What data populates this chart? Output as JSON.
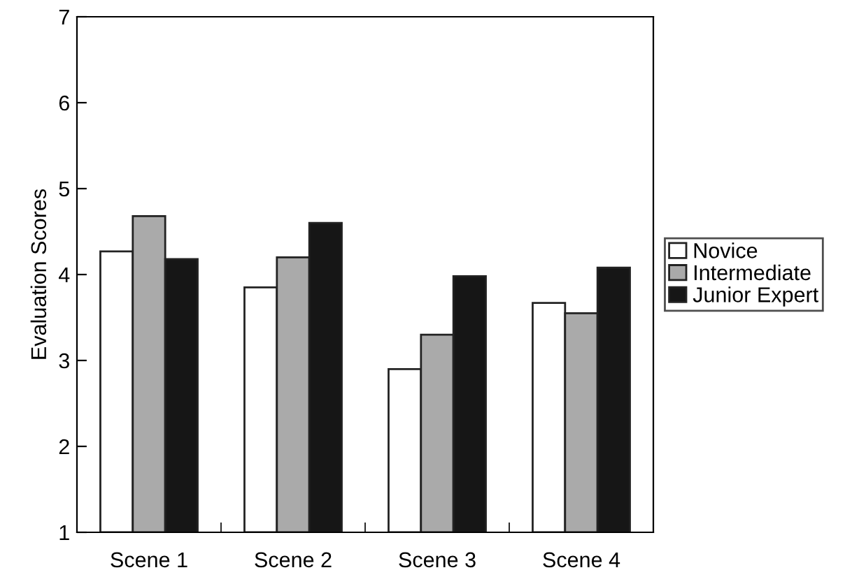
{
  "chart_data": {
    "type": "bar",
    "ylabel": "Evaluation Scores",
    "categories": [
      "Scene 1",
      "Scene 2",
      "Scene 3",
      "Scene 4"
    ],
    "series": [
      {
        "name": "Novice",
        "color": "#ffffff",
        "values": [
          4.27,
          3.85,
          2.9,
          3.67
        ]
      },
      {
        "name": "Intermediate",
        "color": "#aaaaaa",
        "values": [
          4.68,
          4.2,
          3.3,
          3.55
        ]
      },
      {
        "name": "Junior Expert",
        "color": "#161616",
        "values": [
          4.18,
          4.6,
          3.98,
          4.08
        ]
      }
    ],
    "ylim": [
      1,
      7
    ],
    "yticks": [
      1,
      2,
      3,
      4,
      5,
      6,
      7
    ],
    "grid": false,
    "legend": "right"
  }
}
